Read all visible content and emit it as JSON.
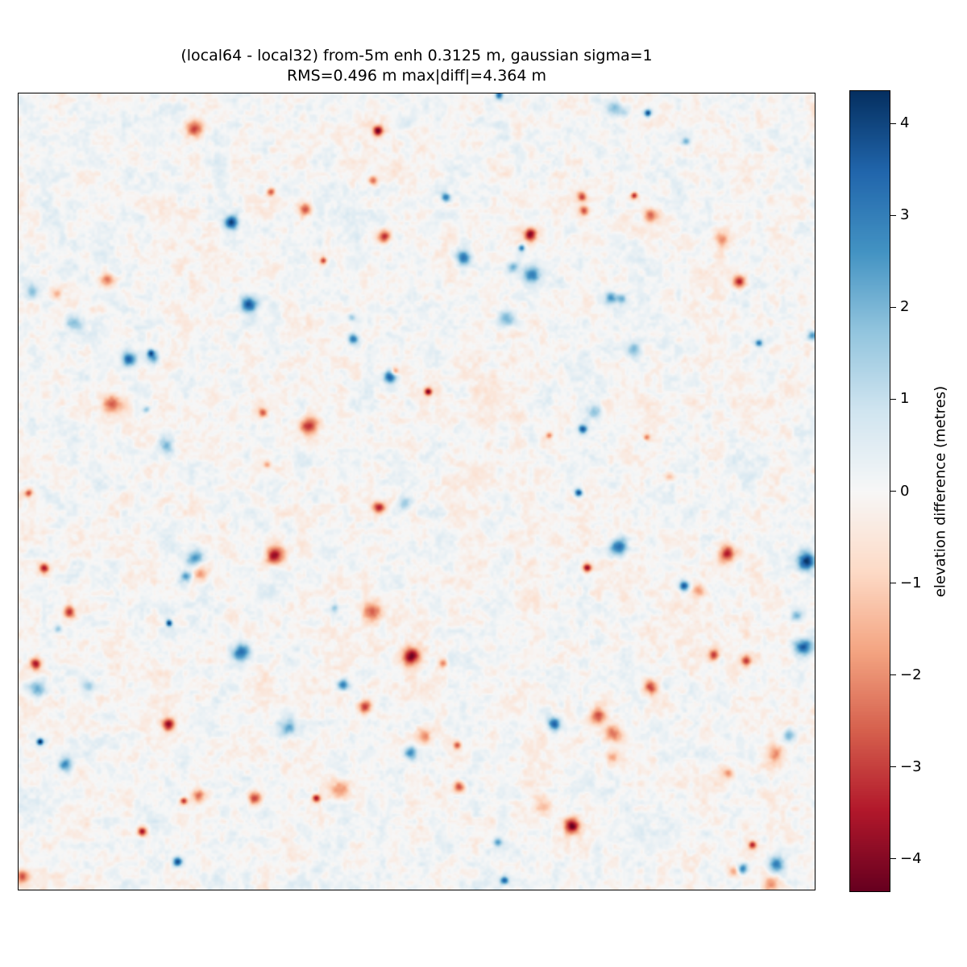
{
  "chart_data": {
    "type": "heatmap",
    "title": "(local64 - local32) from-5m enh 0.3125 m, gaussian sigma=1",
    "subtitle": "RMS=0.496 m   max|diff|=4.364 m",
    "xlabel": "",
    "ylabel": "",
    "colorbar": {
      "label": "elevation difference (metres)",
      "range": [
        -4.364,
        4.364
      ],
      "ticks": [
        4,
        3,
        2,
        1,
        0,
        -1,
        -2,
        -3,
        -4
      ],
      "tick_labels": [
        "4",
        "3",
        "2",
        "1",
        "0",
        "−1",
        "−2",
        "−3",
        "−4"
      ],
      "colormap": "RdBu"
    },
    "rms": 0.496,
    "max_abs_diff": 4.364,
    "axes_ticks_visible": false,
    "grid": false,
    "colors": {
      "min": "#67001f",
      "mid": "#f7f7f7",
      "max": "#053061"
    }
  }
}
